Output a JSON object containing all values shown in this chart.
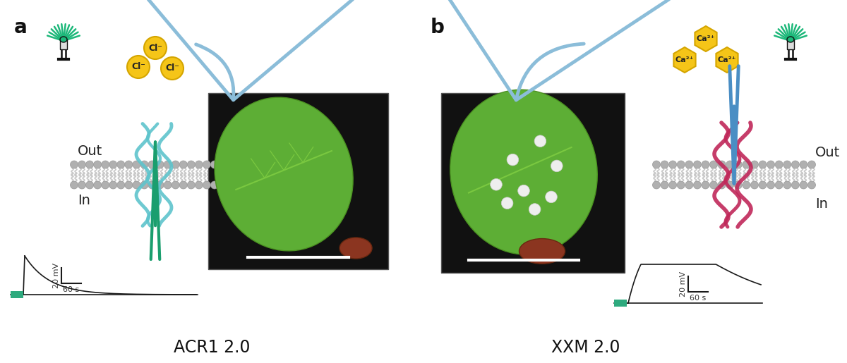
{
  "panel_a_label": "a",
  "panel_b_label": "b",
  "label_acr1": "ACR1 2.0",
  "label_xxm": "XXM 2.0",
  "label_out": "Out",
  "label_in": "In",
  "scale_mv": "20 mV",
  "scale_s": "60 s",
  "arrow_color_curved": "#8BBDD9",
  "arrow_color_straight_b": "#4A8EC4",
  "green_color": "#1A9E6E",
  "protein_color_a": "#5EC4CC",
  "protein_color_b": "#C0285A",
  "ion_color": "#F5C518",
  "ion_edge_color": "#D4A500",
  "membrane_color_head": "#B0B0B0",
  "membrane_color_tail": "#C8C8C8",
  "bg_color": "#FFFFFF",
  "green_rect_color": "#2EAA7E",
  "trace_color": "#1A1A1A",
  "led_green": "#1DB87A",
  "photo_a_bg": "#111111",
  "photo_b_bg": "#111111",
  "leaf_a_color": "#4A9A28",
  "leaf_b_color": "#4A9A28",
  "scale_bar_color": "#FFFFFF"
}
